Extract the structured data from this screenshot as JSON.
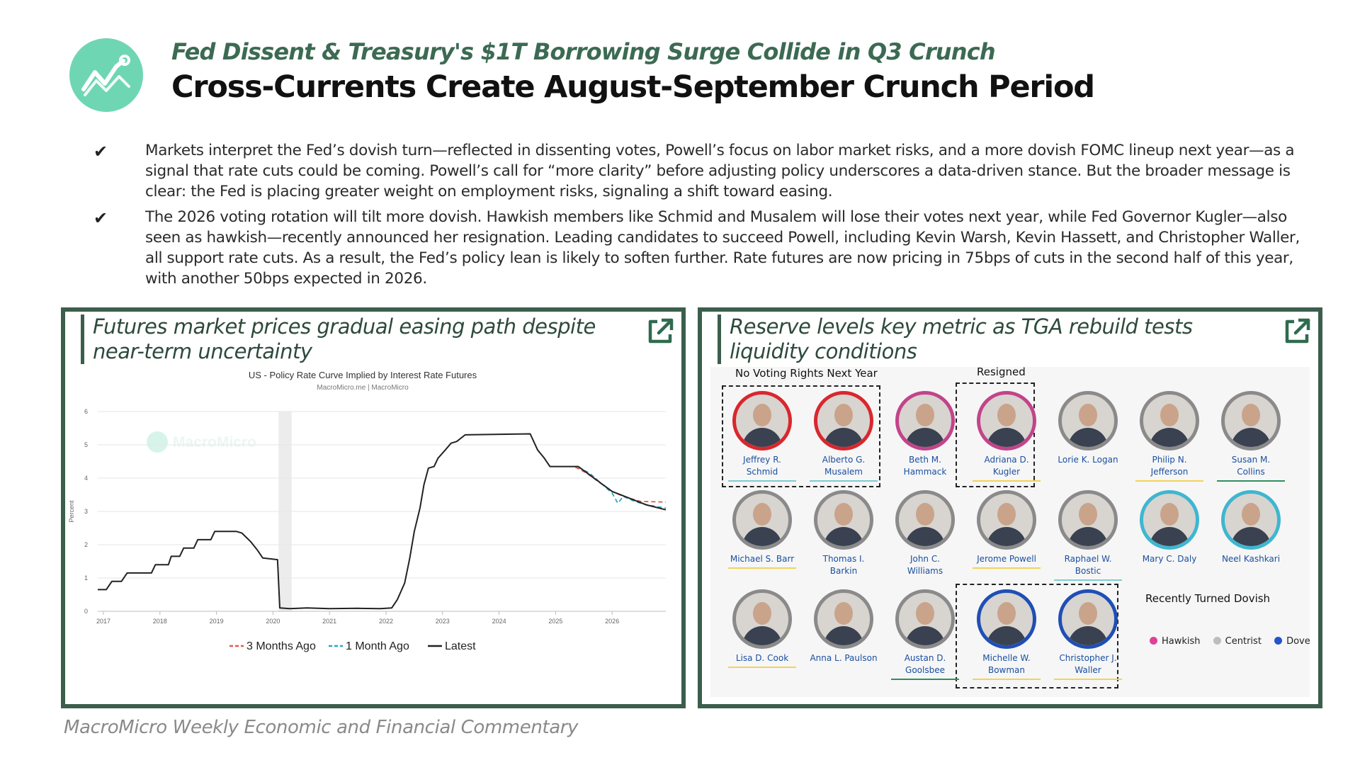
{
  "header": {
    "subtitle": "Fed Dissent & Treasury's $1T Borrowing Surge Collide in Q3 Crunch",
    "title": "Cross-Currents Create August-September Crunch Period"
  },
  "bullets": [
    {
      "mark": "✔",
      "text": "Markets interpret the Fed’s dovish turn—reflected in dissenting votes, Powell’s focus on labor market risks, and a more dovish FOMC lineup next year—as a signal that rate cuts could be coming. Powell’s call for “more clarity” before adjusting policy underscores a data-driven stance. But the broader message is clear: the Fed is placing greater weight on employment risks, signaling a shift toward easing."
    },
    {
      "mark": "✔",
      "text": "The 2026 voting rotation will tilt more dovish. Hawkish members like Schmid and Musalem will lose their votes next year, while Fed Governor Kugler—also seen as hawkish—recently announced her resignation. Leading candidates to succeed Powell, including Kevin Warsh, Kevin Hassett, and Christopher Waller, all support rate cuts. As a result, the Fed’s policy lean is likely to soften further. Rate futures are now pricing in 75bps of cuts in the second half of this year, with another 50bps expected in 2026."
    }
  ],
  "left_panel": {
    "title": "Futures market prices gradual easing path despite near-term uncertainty",
    "chart_title": "US - Policy Rate Curve Implied by Interest Rate Futures",
    "chart_source": "MacroMicro.me | MacroMicro",
    "watermark": "MacroMicro"
  },
  "chart_data": {
    "type": "line",
    "title": "US - Policy Rate Curve Implied by Interest Rate Futures",
    "ylabel": "Percent",
    "xlabel": "",
    "ylim": [
      0,
      6
    ],
    "yticks": [
      0,
      1,
      2,
      3,
      4,
      5,
      6
    ],
    "xlim": [
      2016.9,
      2026.95
    ],
    "xticks": [
      "2017",
      "2018",
      "2019",
      "2020",
      "2021",
      "2022",
      "2023",
      "2024",
      "2025",
      "2026"
    ],
    "grid": true,
    "legend": "bottom",
    "shaded_region": [
      2020.1,
      2020.33
    ],
    "series": [
      {
        "name": "Latest",
        "color": "#222222",
        "dash": "",
        "points": [
          [
            2016.9,
            0.65
          ],
          [
            2017.05,
            0.65
          ],
          [
            2017.15,
            0.9
          ],
          [
            2017.32,
            0.9
          ],
          [
            2017.42,
            1.15
          ],
          [
            2017.85,
            1.15
          ],
          [
            2017.92,
            1.4
          ],
          [
            2018.15,
            1.4
          ],
          [
            2018.2,
            1.65
          ],
          [
            2018.35,
            1.65
          ],
          [
            2018.42,
            1.9
          ],
          [
            2018.6,
            1.9
          ],
          [
            2018.67,
            2.15
          ],
          [
            2018.9,
            2.15
          ],
          [
            2018.97,
            2.4
          ],
          [
            2019.35,
            2.4
          ],
          [
            2019.45,
            2.35
          ],
          [
            2019.6,
            2.1
          ],
          [
            2019.72,
            1.85
          ],
          [
            2019.82,
            1.6
          ],
          [
            2020.08,
            1.55
          ],
          [
            2020.12,
            0.1
          ],
          [
            2020.3,
            0.08
          ],
          [
            2020.6,
            0.1
          ],
          [
            2021,
            0.08
          ],
          [
            2021.5,
            0.09
          ],
          [
            2021.9,
            0.08
          ],
          [
            2022.1,
            0.1
          ],
          [
            2022.2,
            0.35
          ],
          [
            2022.33,
            0.85
          ],
          [
            2022.42,
            1.6
          ],
          [
            2022.5,
            2.4
          ],
          [
            2022.6,
            3.1
          ],
          [
            2022.67,
            3.8
          ],
          [
            2022.75,
            4.3
          ],
          [
            2022.85,
            4.35
          ],
          [
            2022.92,
            4.6
          ],
          [
            2023.05,
            4.85
          ],
          [
            2023.15,
            5.05
          ],
          [
            2023.25,
            5.1
          ],
          [
            2023.4,
            5.3
          ],
          [
            2024.55,
            5.33
          ],
          [
            2024.68,
            4.85
          ],
          [
            2024.8,
            4.6
          ],
          [
            2024.9,
            4.35
          ],
          [
            2025.4,
            4.35
          ],
          [
            2025.6,
            4.1
          ],
          [
            2025.8,
            3.85
          ],
          [
            2026,
            3.6
          ],
          [
            2026.3,
            3.4
          ],
          [
            2026.6,
            3.2
          ],
          [
            2026.95,
            3.05
          ]
        ]
      },
      {
        "name": "1 Month Ago",
        "color": "#2ba6c9",
        "dash": "6,4",
        "points": [
          [
            2025.4,
            4.33
          ],
          [
            2025.6,
            4.15
          ],
          [
            2025.8,
            3.85
          ],
          [
            2026,
            3.55
          ],
          [
            2026.1,
            3.25
          ],
          [
            2026.2,
            3.45
          ],
          [
            2026.4,
            3.3
          ],
          [
            2026.6,
            3.2
          ],
          [
            2026.95,
            3.1
          ]
        ]
      },
      {
        "name": "3 Months Ago",
        "color": "#e05a4f",
        "dash": "6,4",
        "points": [
          [
            2025.35,
            4.33
          ],
          [
            2025.55,
            4.15
          ],
          [
            2025.75,
            3.9
          ],
          [
            2026,
            3.6
          ],
          [
            2026.2,
            3.45
          ],
          [
            2026.5,
            3.3
          ],
          [
            2026.95,
            3.28
          ]
        ]
      }
    ]
  },
  "right_panel": {
    "title": "Reserve levels key metric as TGA rebuild tests liquidity conditions",
    "group_no_voting": "No Voting Rights Next Year",
    "group_resigned": "Resigned",
    "group_turned_dovish": "Recently Turned Dovish",
    "legend": [
      {
        "label": "Hawkish",
        "color": "#e0409a"
      },
      {
        "label": "Centrist",
        "color": "#bdbdbd"
      },
      {
        "label": "Dove",
        "color": "#2255cc"
      }
    ],
    "members": [
      {
        "name1": "Jeffrey R.",
        "name2": "Schmid",
        "ring": "#d9272e",
        "underline": "#7ecbd4"
      },
      {
        "name1": "Alberto G.",
        "name2": "Musalem",
        "ring": "#d9272e",
        "underline": "#7ecbd4"
      },
      {
        "name1": "Beth M.",
        "name2": "Hammack",
        "ring": "#c2448a",
        "underline": ""
      },
      {
        "name1": "Adriana D.",
        "name2": "Kugler",
        "ring": "#c2448a",
        "underline": "#f1d35a"
      },
      {
        "name1": "Lorie K. Logan",
        "name2": "",
        "ring": "#8a8a8a",
        "underline": ""
      },
      {
        "name1": "Philip N.",
        "name2": "Jefferson",
        "ring": "#8a8a8a",
        "underline": "#f1d35a"
      },
      {
        "name1": "Susan M.",
        "name2": "Collins",
        "ring": "#8a8a8a",
        "underline": "#2f8f5f"
      },
      {
        "name1": "Michael S. Barr",
        "name2": "",
        "ring": "#8a8a8a",
        "underline": "#f1d35a"
      },
      {
        "name1": "Thomas I.",
        "name2": "Barkin",
        "ring": "#8a8a8a",
        "underline": ""
      },
      {
        "name1": "John C.",
        "name2": "Williams",
        "ring": "#8a8a8a",
        "underline": ""
      },
      {
        "name1": "Jerome Powell",
        "name2": "",
        "ring": "#8a8a8a",
        "underline": "#f1d35a"
      },
      {
        "name1": "Raphael W.",
        "name2": "Bostic",
        "ring": "#8a8a8a",
        "underline": "#7ecbd4"
      },
      {
        "name1": "Mary C. Daly",
        "name2": "",
        "ring": "#3fb6d0",
        "underline": ""
      },
      {
        "name1": "Neel Kashkari",
        "name2": "",
        "ring": "#3fb6d0",
        "underline": ""
      },
      {
        "name1": "Lisa D. Cook",
        "name2": "",
        "ring": "#8a8a8a",
        "underline": "#f1d35a"
      },
      {
        "name1": "Anna L. Paulson",
        "name2": "",
        "ring": "#8a8a8a",
        "underline": ""
      },
      {
        "name1": "Austan D.",
        "name2": "Goolsbee",
        "ring": "#8a8a8a",
        "underline": "#2f8f5f"
      },
      {
        "name1": "Michelle W.",
        "name2": "Bowman",
        "ring": "#1f4fb5",
        "underline": "#f1d35a"
      },
      {
        "name1": "Christopher J.",
        "name2": "Waller",
        "ring": "#1f4fb5",
        "underline": "#f1d35a"
      }
    ]
  },
  "footer": {
    "text": "MacroMicro Weekly Economic and Financial Commentary"
  }
}
